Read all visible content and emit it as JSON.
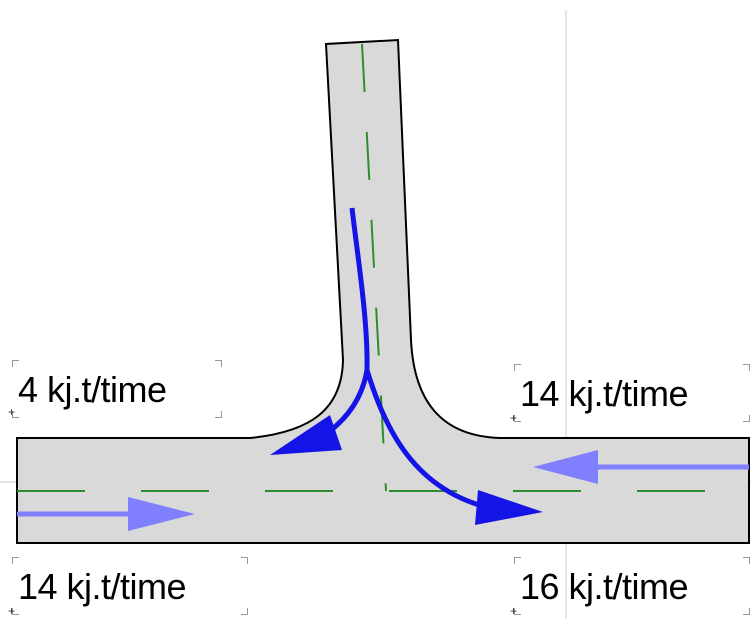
{
  "labels": {
    "top_left": "4 kj.t/time",
    "top_right": "14 kj.t/time",
    "bottom_left": "14 kj.t/time",
    "bottom_right": "16 kj.t/time"
  },
  "colors": {
    "road_fill": "#d9d9d9",
    "road_edge": "#000000",
    "lane_marking": "#2e8b2e",
    "turning_arrow": "#1414e6",
    "through_arrow": "#8080ff",
    "grid_line": "#e6e6e6"
  }
}
